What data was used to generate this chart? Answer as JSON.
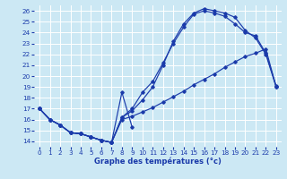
{
  "background_color": "#cce8f4",
  "grid_color": "#ffffff",
  "line_color": "#1a3aaa",
  "xlabel": "Graphe des températures (°c)",
  "xlim": [
    -0.5,
    23.5
  ],
  "ylim": [
    13.5,
    26.5
  ],
  "xticks": [
    0,
    1,
    2,
    3,
    4,
    5,
    6,
    7,
    8,
    9,
    10,
    11,
    12,
    13,
    14,
    15,
    16,
    17,
    18,
    19,
    20,
    21,
    22,
    23
  ],
  "yticks": [
    14,
    15,
    16,
    17,
    18,
    19,
    20,
    21,
    22,
    23,
    24,
    25,
    26
  ],
  "curve1": {
    "x": [
      0,
      1,
      2,
      3,
      4,
      5,
      6,
      7,
      8,
      9
    ],
    "y": [
      17,
      16,
      15.5,
      14.8,
      14.7,
      14.4,
      14.1,
      13.9,
      18.5,
      15.3
    ]
  },
  "curve2": {
    "x": [
      0,
      1,
      2,
      3,
      4,
      5,
      6,
      7,
      8,
      9,
      10,
      11,
      12,
      13,
      14,
      15,
      16,
      17,
      18,
      19,
      20,
      21,
      22,
      23
    ],
    "y": [
      17,
      16,
      15.5,
      14.8,
      14.7,
      14.4,
      14.1,
      13.9,
      16.0,
      16.3,
      16.7,
      17.1,
      17.6,
      18.1,
      18.6,
      19.2,
      19.7,
      20.2,
      20.8,
      21.3,
      21.8,
      22.1,
      22.5,
      19.0
    ]
  },
  "curve3": {
    "x": [
      0,
      1,
      2,
      3,
      4,
      5,
      6,
      7,
      8,
      9,
      10,
      11,
      12,
      13,
      14,
      15,
      16,
      17,
      18,
      19,
      20,
      21,
      22,
      23
    ],
    "y": [
      17,
      16,
      15.5,
      14.8,
      14.7,
      14.4,
      14.1,
      13.9,
      16.2,
      16.8,
      17.8,
      19.0,
      21.0,
      23.2,
      24.8,
      25.8,
      26.2,
      26.0,
      25.8,
      25.4,
      24.2,
      23.5,
      22.0,
      19.0
    ]
  },
  "curve4": {
    "x": [
      0,
      1,
      2,
      3,
      4,
      5,
      6,
      7,
      8,
      9,
      10,
      11,
      12,
      13,
      14,
      15,
      16,
      17,
      18,
      19,
      20,
      21,
      22,
      23
    ],
    "y": [
      17,
      16,
      15.5,
      14.8,
      14.7,
      14.4,
      14.1,
      13.9,
      16.2,
      17.0,
      18.5,
      19.5,
      21.2,
      23.0,
      24.5,
      25.7,
      26.0,
      25.8,
      25.5,
      24.8,
      24.0,
      23.7,
      22.1,
      19.1
    ]
  }
}
